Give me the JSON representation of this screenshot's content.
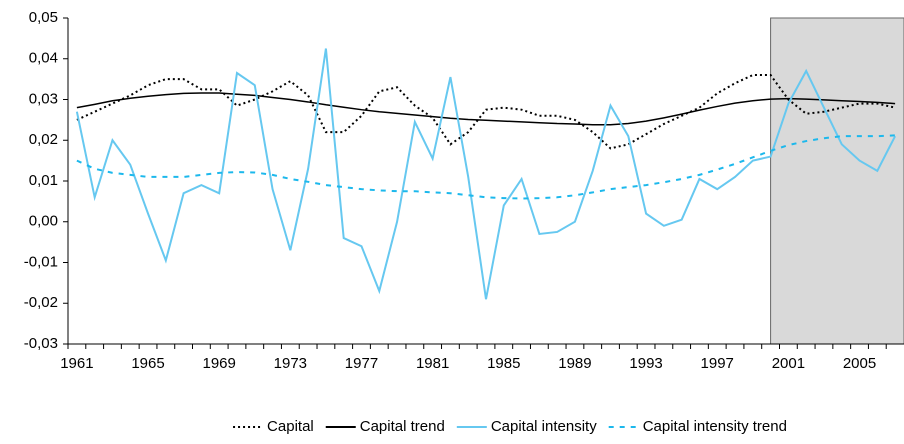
{
  "chart_data": {
    "type": "line",
    "categories": [
      "1961",
      null,
      null,
      null,
      "1965",
      null,
      null,
      null,
      "1969",
      null,
      null,
      null,
      "1973",
      null,
      null,
      null,
      "1977",
      null,
      null,
      null,
      "1981",
      null,
      null,
      null,
      "1985",
      null,
      null,
      null,
      "1989",
      null,
      null,
      null,
      "1993",
      null,
      null,
      null,
      "1997",
      null,
      null,
      null,
      "2001",
      null,
      null,
      null,
      "2005",
      null,
      null
    ],
    "series": [
      {
        "name": "Capital",
        "color": "#000000",
        "dash": "dotted",
        "values": [
          0.025,
          0.027,
          0.029,
          0.031,
          0.0335,
          0.035,
          0.035,
          0.0325,
          0.0325,
          0.0285,
          0.03,
          0.032,
          0.0345,
          0.031,
          0.022,
          0.022,
          0.026,
          0.032,
          0.033,
          0.0285,
          0.0255,
          0.019,
          0.022,
          0.0275,
          0.028,
          0.0275,
          0.026,
          0.026,
          0.025,
          0.022,
          0.018,
          0.019,
          0.0215,
          0.024,
          0.026,
          0.028,
          0.0315,
          0.034,
          0.036,
          0.036,
          0.03,
          0.0265,
          0.027,
          0.028,
          0.029,
          0.029,
          0.028
        ]
      },
      {
        "name": "Capital trend",
        "color": "#000000",
        "dash": "solid",
        "values": [
          0.028,
          0.0288,
          0.0297,
          0.0303,
          0.0308,
          0.0312,
          0.0315,
          0.0316,
          0.0316,
          0.0313,
          0.031,
          0.0305,
          0.03,
          0.0294,
          0.0287,
          0.0281,
          0.0275,
          0.027,
          0.0266,
          0.0262,
          0.0258,
          0.0254,
          0.0251,
          0.0249,
          0.0247,
          0.0245,
          0.0243,
          0.0241,
          0.024,
          0.0238,
          0.0238,
          0.0241,
          0.0247,
          0.0255,
          0.0264,
          0.0274,
          0.0283,
          0.0291,
          0.0297,
          0.0301,
          0.0302,
          0.0301,
          0.0299,
          0.0297,
          0.0295,
          0.0293,
          0.029
        ]
      },
      {
        "name": "Capital intensity",
        "color": "#66c8f0",
        "dash": "solid",
        "values": [
          0.027,
          0.006,
          0.02,
          0.014,
          0.002,
          -0.0095,
          0.007,
          0.009,
          0.007,
          0.0365,
          0.0335,
          0.008,
          -0.007,
          0.013,
          0.0425,
          -0.004,
          -0.006,
          -0.017,
          0.0,
          0.0245,
          0.0155,
          0.0355,
          0.011,
          -0.019,
          0.004,
          0.0105,
          -0.003,
          -0.0025,
          0.0,
          0.0125,
          0.0285,
          0.021,
          0.002,
          -0.001,
          0.0005,
          0.0105,
          0.008,
          0.011,
          0.015,
          0.016,
          0.029,
          0.037,
          0.028,
          0.019,
          0.015,
          0.0125,
          0.021
        ]
      },
      {
        "name": "Capital intensity trend",
        "color": "#1cb8ec",
        "dash": "dashed",
        "values": [
          0.015,
          0.013,
          0.012,
          0.0115,
          0.011,
          0.011,
          0.011,
          0.0115,
          0.012,
          0.0122,
          0.0121,
          0.0115,
          0.0105,
          0.0098,
          0.009,
          0.0085,
          0.008,
          0.0077,
          0.0075,
          0.0075,
          0.0072,
          0.007,
          0.0065,
          0.006,
          0.0058,
          0.0057,
          0.0058,
          0.006,
          0.0065,
          0.0072,
          0.008,
          0.0085,
          0.009,
          0.0097,
          0.0105,
          0.0115,
          0.0128,
          0.0142,
          0.0158,
          0.0174,
          0.0188,
          0.0198,
          0.0205,
          0.021,
          0.021,
          0.021,
          0.0212
        ]
      }
    ],
    "ylim": [
      -0.03,
      0.05
    ],
    "yticks": [
      {
        "value": -0.03,
        "label": "-0,03"
      },
      {
        "value": -0.02,
        "label": "-0,02"
      },
      {
        "value": -0.01,
        "label": "-0,01"
      },
      {
        "value": 0,
        "label": "0,00"
      },
      {
        "value": 0.01,
        "label": "0,01"
      },
      {
        "value": 0.02,
        "label": "0,02"
      },
      {
        "value": 0.03,
        "label": "0,03"
      },
      {
        "value": 0.04,
        "label": "0,04"
      },
      {
        "value": 0.05,
        "label": "0,05"
      }
    ],
    "shaded_from_index": 39,
    "shade_color": "#d9d9d9",
    "legend": "bottom"
  }
}
